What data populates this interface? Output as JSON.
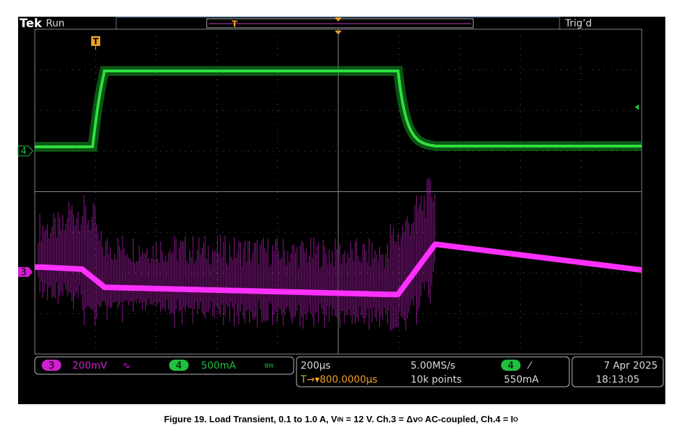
{
  "header": {
    "brand": "Tek",
    "status": "Run",
    "trigger_status": "Trig’d"
  },
  "markers": {
    "trigger_top": "T",
    "trigger_left": "T"
  },
  "channels": {
    "ch4_marker": "4",
    "ch3_marker": "3"
  },
  "bottom_panel": {
    "ch3_badge": "3",
    "ch3_scale": "200mV",
    "ch3_coupling": "∿",
    "ch4_badge": "4",
    "ch4_scale": "500mA",
    "bandwidth": "BW",
    "timebase": "200µs",
    "sample_rate": "5.00MS/s",
    "trigger_badge": "4",
    "trigger_slope": "⁄",
    "trigger_level": "550mA",
    "trigger_position": "T→▾800.0000µs",
    "record_length": "10k points",
    "date": "7 Apr 2025",
    "time": "18:13:05"
  },
  "caption": {
    "parts": [
      "Figure 19. Load Transient, 0.1 to 1.0 A, V",
      "IN",
      " = 12 V. Ch.3 = Δv",
      "O",
      " AC-coupled, Ch.4 = I",
      "O"
    ]
  }
}
